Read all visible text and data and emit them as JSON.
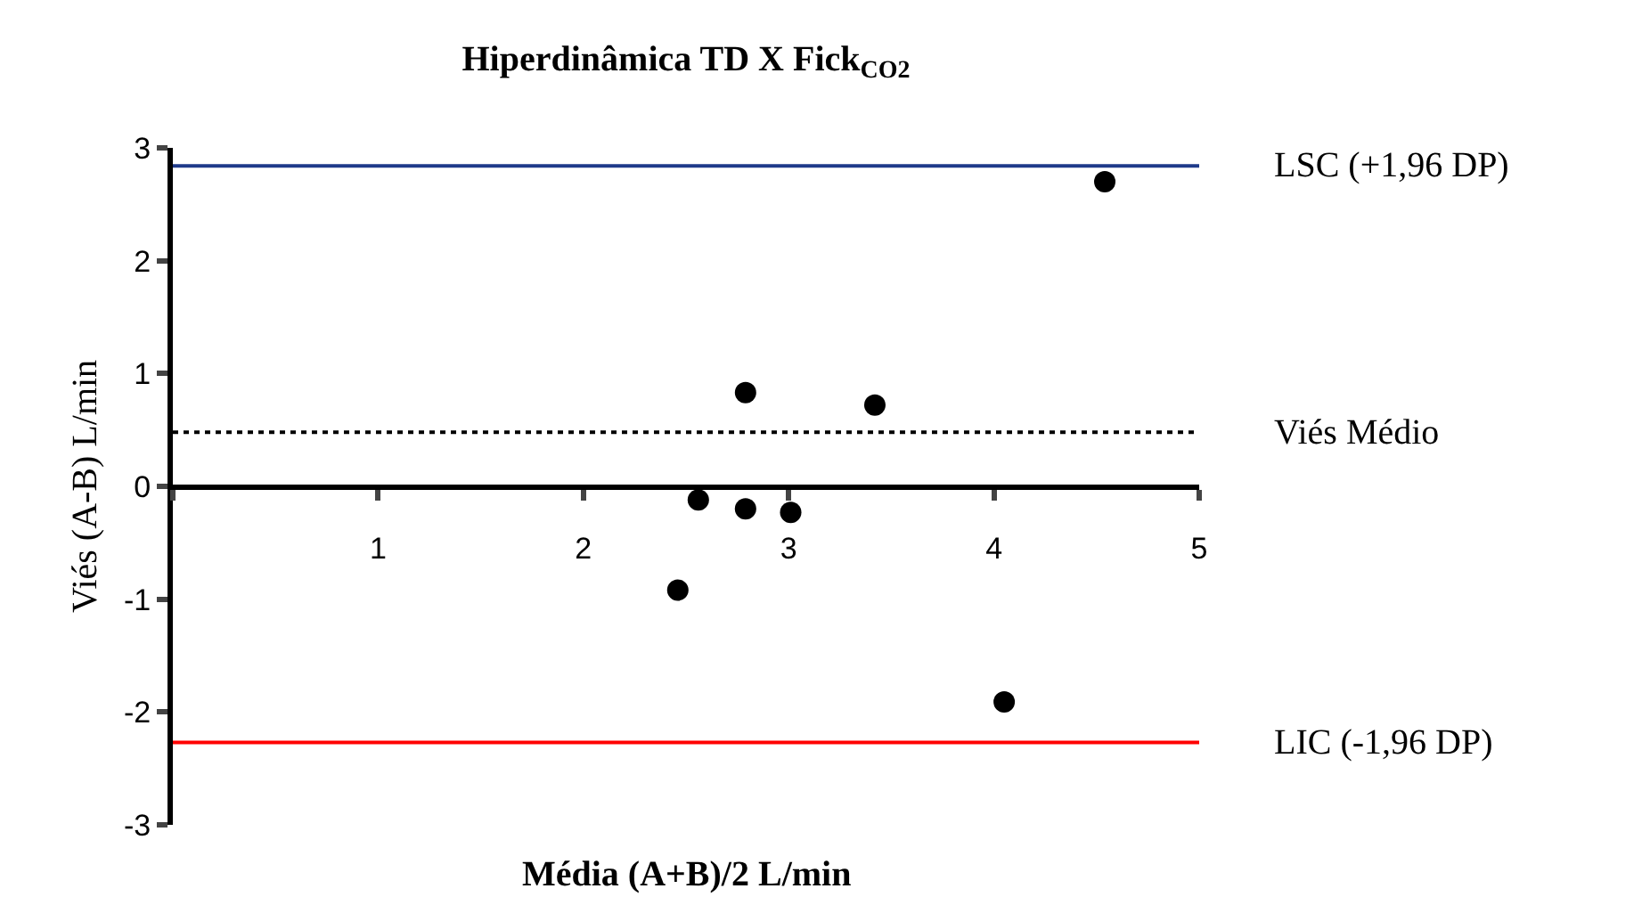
{
  "chart_data": {
    "type": "scatter",
    "title": "Hiperdinâmica TD X Fick$_{CO2}$",
    "xlabel": "Média (A+B)/2 L/min",
    "ylabel": "Viés (A-B) L/min",
    "x": [
      2.46,
      2.56,
      2.79,
      2.79,
      3.01,
      3.42,
      4.05,
      4.54
    ],
    "series": [
      {
        "color": "#000000",
        "values": [
          -0.92,
          -0.12,
          -0.2,
          0.83,
          -0.23,
          0.72,
          -1.91,
          2.7
        ]
      }
    ],
    "xlim": [
      0,
      5
    ],
    "xticks": [
      {
        "value": 0,
        "label": null
      },
      1,
      2,
      3,
      4,
      5
    ],
    "ylim": [
      -3,
      3
    ],
    "yticks": [
      -3,
      -2,
      -1,
      0,
      1,
      2,
      3
    ],
    "ref_lines": [
      {
        "axis": "y",
        "value": 2.84,
        "label": "LSC (+1,96 DP)",
        "color": "#1f3a8a",
        "line_style": "solid"
      },
      {
        "axis": "y",
        "value": 0.48,
        "label": "Viés Médio",
        "color": "#000000",
        "line_style": "dotted"
      },
      {
        "axis": "y",
        "value": -2.27,
        "label": "LIC (-1,96 DP)",
        "color": "#ff0000",
        "line_style": "solid"
      }
    ],
    "marker": "circle",
    "grid": false,
    "legend": false
  }
}
